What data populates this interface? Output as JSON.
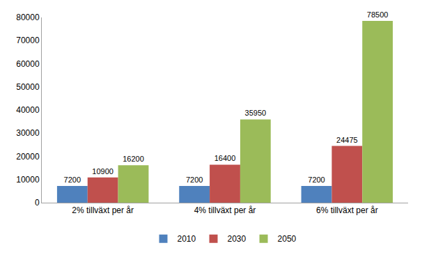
{
  "chart_data": {
    "type": "bar",
    "categories": [
      "2% tillväxt per år",
      "4% tillväxt per år",
      "6% tillväxt per år"
    ],
    "series": [
      {
        "name": "2010",
        "color": "#4f81bd",
        "values": [
          7200,
          7200,
          7200
        ]
      },
      {
        "name": "2030",
        "color": "#c0504d",
        "values": [
          10900,
          16400,
          24475
        ]
      },
      {
        "name": "2050",
        "color": "#9bbb59",
        "values": [
          16200,
          35950,
          78500
        ]
      }
    ],
    "ylim": [
      0,
      80000
    ],
    "yticks": [
      0,
      10000,
      20000,
      30000,
      40000,
      50000,
      60000,
      70000,
      80000
    ],
    "grid": false,
    "legend": "bottom",
    "data_labels": true
  }
}
